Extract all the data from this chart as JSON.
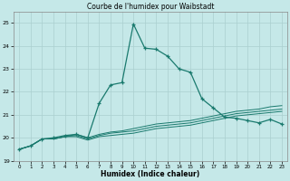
{
  "title": "Courbe de l'humidex pour Waibstadt",
  "xlabel": "Humidex (Indice chaleur)",
  "bg_color": "#c5e8e8",
  "grid_color": "#aacfcf",
  "line_color": "#1a7a6e",
  "xlim": [
    -0.5,
    23.5
  ],
  "ylim": [
    19,
    25.5
  ],
  "yticks": [
    19,
    20,
    21,
    22,
    23,
    24,
    25
  ],
  "xticks": [
    0,
    1,
    2,
    3,
    4,
    5,
    6,
    7,
    8,
    9,
    10,
    11,
    12,
    13,
    14,
    15,
    16,
    17,
    18,
    19,
    20,
    21,
    22,
    23
  ],
  "line1_x": [
    0,
    1,
    2,
    3,
    4,
    5,
    6,
    7,
    8,
    9,
    10,
    11,
    12,
    13,
    14,
    15,
    16,
    17,
    18,
    19,
    20,
    21,
    22,
    23
  ],
  "line1_y": [
    19.5,
    19.65,
    19.95,
    19.95,
    20.05,
    20.05,
    19.9,
    20.05,
    20.1,
    20.15,
    20.2,
    20.3,
    20.4,
    20.45,
    20.5,
    20.55,
    20.65,
    20.75,
    20.85,
    20.95,
    21.0,
    21.05,
    21.1,
    21.15
  ],
  "line2_x": [
    0,
    1,
    2,
    3,
    4,
    5,
    6,
    7,
    8,
    9,
    10,
    11,
    12,
    13,
    14,
    15,
    16,
    17,
    18,
    19,
    20,
    21,
    22,
    23
  ],
  "line2_y": [
    19.5,
    19.65,
    19.95,
    19.95,
    20.05,
    20.1,
    19.95,
    20.1,
    20.2,
    20.25,
    20.3,
    20.4,
    20.5,
    20.55,
    20.6,
    20.65,
    20.75,
    20.85,
    20.95,
    21.05,
    21.1,
    21.15,
    21.2,
    21.25
  ],
  "line3_x": [
    0,
    1,
    2,
    3,
    4,
    5,
    6,
    7,
    8,
    9,
    10,
    11,
    12,
    13,
    14,
    15,
    16,
    17,
    18,
    19,
    20,
    21,
    22,
    23
  ],
  "line3_y": [
    19.5,
    19.65,
    19.95,
    19.95,
    20.05,
    20.15,
    20.0,
    20.15,
    20.25,
    20.3,
    20.4,
    20.5,
    20.6,
    20.65,
    20.7,
    20.75,
    20.85,
    20.95,
    21.05,
    21.15,
    21.2,
    21.25,
    21.35,
    21.4
  ],
  "line4_x": [
    0,
    1,
    2,
    3,
    4,
    5,
    6,
    7,
    8,
    9,
    10,
    11,
    12,
    13,
    14,
    15,
    16,
    17,
    18,
    19,
    20,
    21,
    22,
    23
  ],
  "line4_y": [
    19.5,
    19.65,
    19.95,
    20.0,
    20.1,
    20.15,
    20.0,
    21.5,
    22.3,
    22.4,
    24.95,
    23.9,
    23.85,
    23.55,
    23.0,
    22.85,
    21.7,
    21.3,
    20.9,
    20.85,
    20.75,
    20.65,
    20.8,
    20.6
  ]
}
